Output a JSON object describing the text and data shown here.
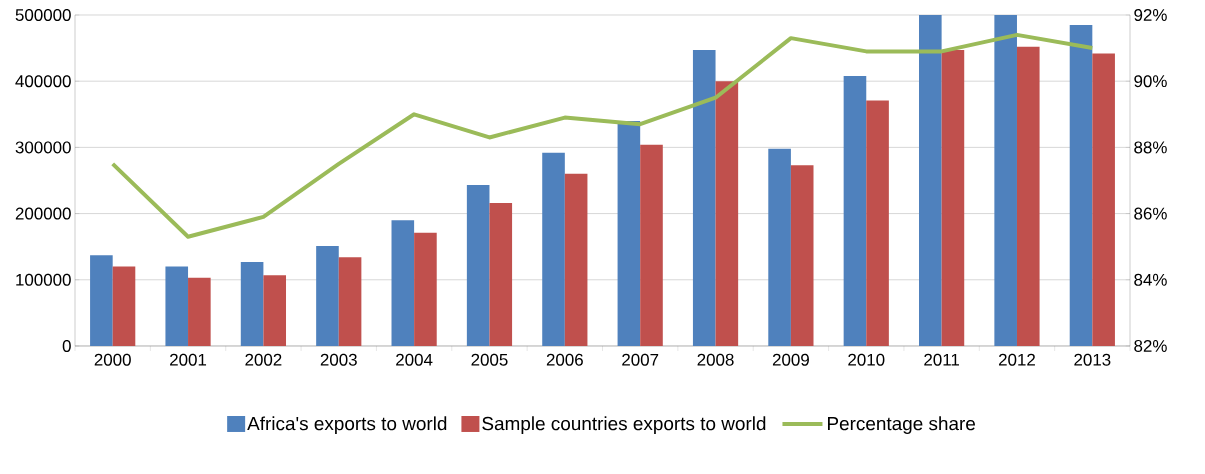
{
  "chart_data": {
    "type": "bar",
    "categories": [
      "2000",
      "2001",
      "2002",
      "2003",
      "2004",
      "2005",
      "2006",
      "2007",
      "2008",
      "2009",
      "2010",
      "2011",
      "2012",
      "2013"
    ],
    "series": [
      {
        "name": "Africa's exports to world",
        "color": "#4f81bd",
        "values": [
          137000,
          120000,
          127000,
          151000,
          190000,
          243000,
          292000,
          340000,
          447000,
          298000,
          408000,
          500000,
          500000,
          485000
        ]
      },
      {
        "name": "Sample countries exports to world",
        "color": "#c0504d",
        "values": [
          120000,
          103000,
          107000,
          134000,
          171000,
          216000,
          260000,
          304000,
          400000,
          273000,
          371000,
          447000,
          452000,
          442000
        ]
      },
      {
        "name": "Percentage share",
        "type": "line",
        "axis": "y2",
        "color": "#9bbb59",
        "values": [
          87.5,
          85.3,
          85.9,
          87.5,
          89.0,
          88.3,
          88.9,
          88.7,
          89.5,
          91.3,
          90.9,
          90.9,
          91.4,
          91.0
        ]
      }
    ],
    "ylim": [
      0,
      500000
    ],
    "yticks": [
      0,
      100000,
      200000,
      300000,
      400000,
      500000
    ],
    "y2lim": [
      82,
      92
    ],
    "y2ticks": [
      {
        "value": 82,
        "label": "82%"
      },
      {
        "value": 84,
        "label": "84%"
      },
      {
        "value": 86,
        "label": "86%"
      },
      {
        "value": 88,
        "label": "88%"
      },
      {
        "value": 90,
        "label": "90%"
      },
      {
        "value": 92,
        "label": "92%"
      }
    ],
    "grid": "y",
    "legend": "bottom",
    "marker": "none",
    "line_style": "solid"
  }
}
